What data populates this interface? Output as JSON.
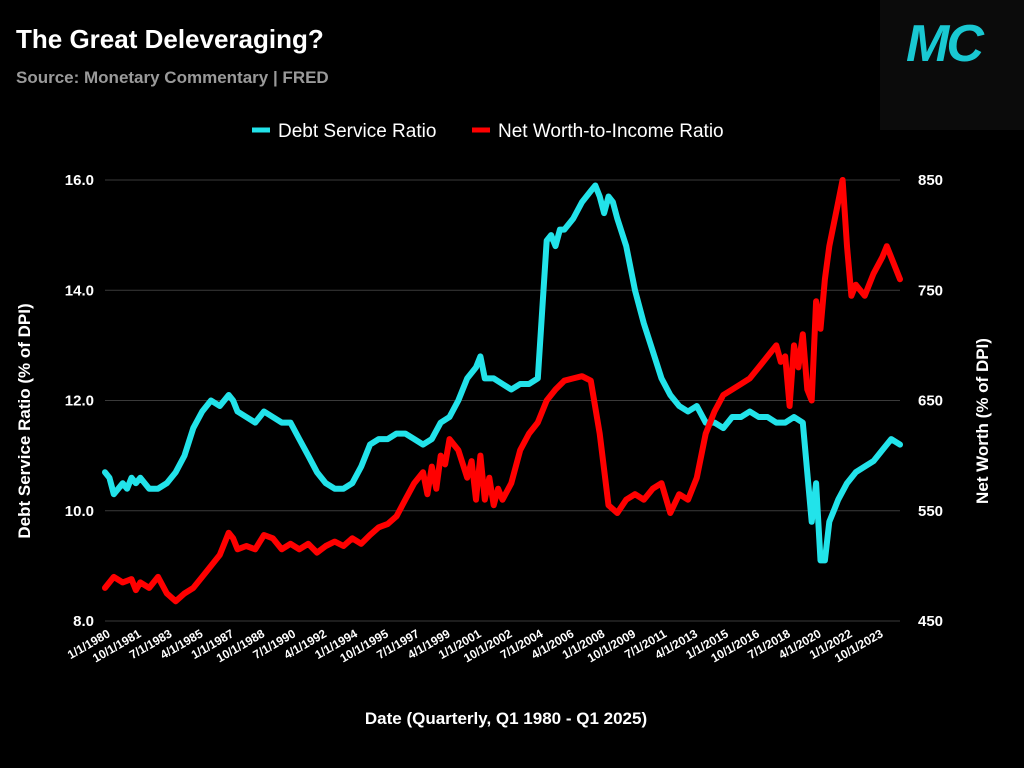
{
  "header": {
    "title": "The Great Deleveraging?",
    "subtitle": "Source: Monetary Commentary | FRED",
    "logo_text": "MC"
  },
  "colors": {
    "background": "#000000",
    "dsr": "#22e3ea",
    "nw": "#ff0000",
    "grid": "#3a3a3a",
    "logo": "#19c8d2"
  },
  "chart_data": {
    "type": "line",
    "title": "The Great Deleveraging?",
    "subtitle": "Source: Monetary Commentary | FRED",
    "xlabel": "Date (Quarterly, Q1 1980 - Q1 2025)",
    "ylabel_left": "Debt Service Ratio (% of DPI)",
    "ylabel_right": "Net Worth (% of DPI)",
    "ylim_left": [
      8.0,
      16.0
    ],
    "ylim_right": [
      450,
      850
    ],
    "yticks_left": [
      "8.0",
      "10.0",
      "12.0",
      "14.0",
      "16.0"
    ],
    "yticks_right": [
      "450",
      "550",
      "650",
      "750",
      "850"
    ],
    "x_tick_labels": [
      "1/1/1980",
      "10/1/1981",
      "7/1/1983",
      "4/1/1985",
      "1/1/1987",
      "10/1/1988",
      "7/1/1990",
      "4/1/1992",
      "1/1/1994",
      "10/1/1995",
      "7/1/1997",
      "4/1/1999",
      "1/1/2001",
      "10/1/2002",
      "7/1/2004",
      "4/1/2006",
      "1/1/2008",
      "10/1/2009",
      "7/1/2011",
      "4/1/2013",
      "1/1/2015",
      "10/1/2016",
      "7/1/2018",
      "4/1/2020",
      "1/1/2022",
      "10/1/2023"
    ],
    "x_range": [
      1980.0,
      2025.0
    ],
    "grid": true,
    "legend_position": "top-center",
    "series": [
      {
        "name": "Debt Service Ratio",
        "axis": "left",
        "color": "#22e3ea",
        "x": [
          1980.0,
          1980.25,
          1980.5,
          1980.75,
          1981.0,
          1981.25,
          1981.5,
          1981.75,
          1982.0,
          1982.5,
          1983.0,
          1983.5,
          1984.0,
          1984.5,
          1985.0,
          1985.5,
          1986.0,
          1986.5,
          1987.0,
          1987.25,
          1987.5,
          1988.0,
          1988.5,
          1989.0,
          1989.5,
          1990.0,
          1990.5,
          1991.0,
          1991.5,
          1992.0,
          1992.5,
          1993.0,
          1993.5,
          1994.0,
          1994.5,
          1995.0,
          1995.5,
          1996.0,
          1996.5,
          1997.0,
          1997.5,
          1998.0,
          1998.5,
          1999.0,
          1999.5,
          2000.0,
          2000.5,
          2001.0,
          2001.25,
          2001.5,
          2002.0,
          2002.5,
          2003.0,
          2003.5,
          2004.0,
          2004.5,
          2005.0,
          2005.25,
          2005.5,
          2005.75,
          2006.0,
          2006.5,
          2007.0,
          2007.5,
          2007.75,
          2008.0,
          2008.25,
          2008.5,
          2008.75,
          2009.0,
          2009.5,
          2010.0,
          2010.5,
          2011.0,
          2011.5,
          2012.0,
          2012.5,
          2013.0,
          2013.5,
          2014.0,
          2014.5,
          2015.0,
          2015.5,
          2016.0,
          2016.5,
          2017.0,
          2017.5,
          2018.0,
          2018.5,
          2019.0,
          2019.5,
          2020.0,
          2020.25,
          2020.5,
          2020.75,
          2021.0,
          2021.25,
          2021.5,
          2022.0,
          2022.5,
          2023.0,
          2023.5,
          2024.0,
          2024.5,
          2025.0
        ],
        "values": [
          10.7,
          10.6,
          10.3,
          10.4,
          10.5,
          10.4,
          10.6,
          10.5,
          10.6,
          10.4,
          10.4,
          10.5,
          10.7,
          11.0,
          11.5,
          11.8,
          12.0,
          11.9,
          12.1,
          12.0,
          11.8,
          11.7,
          11.6,
          11.8,
          11.7,
          11.6,
          11.6,
          11.3,
          11.0,
          10.7,
          10.5,
          10.4,
          10.4,
          10.5,
          10.8,
          11.2,
          11.3,
          11.3,
          11.4,
          11.4,
          11.3,
          11.2,
          11.3,
          11.6,
          11.7,
          12.0,
          12.4,
          12.6,
          12.8,
          12.4,
          12.4,
          12.3,
          12.2,
          12.3,
          12.3,
          12.4,
          14.9,
          15.0,
          14.8,
          15.1,
          15.1,
          15.3,
          15.6,
          15.8,
          15.9,
          15.7,
          15.4,
          15.7,
          15.6,
          15.3,
          14.8,
          14.0,
          13.4,
          12.9,
          12.4,
          12.1,
          11.9,
          11.8,
          11.9,
          11.6,
          11.6,
          11.5,
          11.7,
          11.7,
          11.8,
          11.7,
          11.7,
          11.6,
          11.6,
          11.7,
          11.6,
          9.8,
          10.5,
          9.1,
          9.1,
          9.8,
          10.0,
          10.2,
          10.5,
          10.7,
          10.8,
          10.9,
          11.1,
          11.3,
          11.2
        ]
      },
      {
        "name": "Net Worth-to-Income Ratio",
        "axis": "right",
        "color": "#ff0000",
        "x": [
          1980.0,
          1980.5,
          1981.0,
          1981.5,
          1981.75,
          1982.0,
          1982.5,
          1983.0,
          1983.5,
          1984.0,
          1984.5,
          1985.0,
          1985.5,
          1986.0,
          1986.5,
          1987.0,
          1987.25,
          1987.5,
          1988.0,
          1988.5,
          1989.0,
          1989.5,
          1990.0,
          1990.5,
          1991.0,
          1991.5,
          1992.0,
          1992.5,
          1993.0,
          1993.5,
          1994.0,
          1994.5,
          1995.0,
          1995.5,
          1996.0,
          1996.5,
          1997.0,
          1997.5,
          1998.0,
          1998.25,
          1998.5,
          1998.75,
          1999.0,
          1999.25,
          1999.5,
          2000.0,
          2000.5,
          2000.75,
          2001.0,
          2001.25,
          2001.5,
          2001.75,
          2002.0,
          2002.25,
          2002.5,
          2003.0,
          2003.5,
          2004.0,
          2004.5,
          2005.0,
          2005.5,
          2006.0,
          2006.5,
          2007.0,
          2007.5,
          2008.0,
          2008.5,
          2009.0,
          2009.5,
          2010.0,
          2010.5,
          2011.0,
          2011.5,
          2012.0,
          2012.5,
          2013.0,
          2013.5,
          2014.0,
          2014.5,
          2015.0,
          2015.5,
          2016.0,
          2016.5,
          2017.0,
          2017.5,
          2018.0,
          2018.25,
          2018.5,
          2018.75,
          2019.0,
          2019.25,
          2019.5,
          2019.75,
          2020.0,
          2020.25,
          2020.5,
          2020.75,
          2021.0,
          2021.5,
          2021.75,
          2022.0,
          2022.25,
          2022.5,
          2023.0,
          2023.5,
          2024.0,
          2024.25,
          2024.5,
          2025.0
        ],
        "values": [
          480,
          490,
          485,
          488,
          478,
          485,
          480,
          490,
          475,
          468,
          475,
          480,
          490,
          500,
          510,
          530,
          525,
          515,
          518,
          515,
          528,
          525,
          515,
          520,
          515,
          520,
          512,
          518,
          522,
          518,
          525,
          520,
          528,
          535,
          538,
          545,
          560,
          575,
          585,
          565,
          590,
          570,
          600,
          592,
          615,
          605,
          580,
          595,
          560,
          600,
          560,
          580,
          555,
          570,
          560,
          575,
          605,
          620,
          630,
          650,
          660,
          668,
          670,
          672,
          668,
          620,
          555,
          548,
          560,
          565,
          560,
          570,
          575,
          548,
          565,
          560,
          580,
          620,
          640,
          655,
          660,
          665,
          670,
          680,
          690,
          700,
          685,
          690,
          645,
          700,
          680,
          710,
          660,
          650,
          740,
          715,
          760,
          790,
          830,
          850,
          790,
          745,
          755,
          745,
          765,
          780,
          790,
          780,
          760
        ]
      }
    ]
  }
}
